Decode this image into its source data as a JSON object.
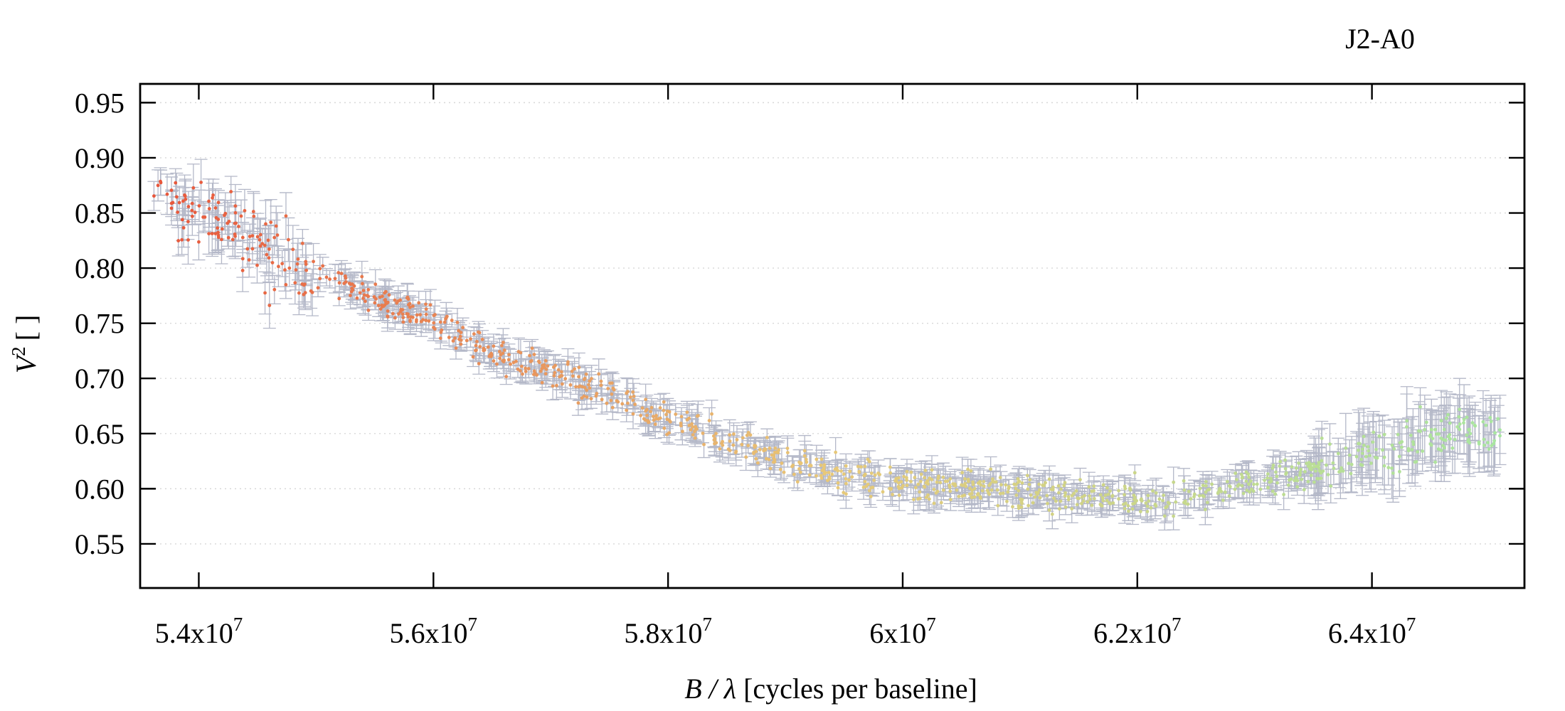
{
  "chart_data": {
    "type": "scatter",
    "title": "J2-A0",
    "xlabel": {
      "italic": "B / λ",
      "text": "[cycles per baseline]"
    },
    "ylabel": {
      "symbol": "V",
      "sup": "2",
      "units": "[ ]"
    },
    "xlim": [
      53500000,
      65300000
    ],
    "ylim": [
      0.51,
      0.967
    ],
    "x_ticks": [
      {
        "value": 54000000,
        "mantissa": "5.4x10",
        "exp": "7"
      },
      {
        "value": 56000000,
        "mantissa": "5.6x10",
        "exp": "7"
      },
      {
        "value": 58000000,
        "mantissa": "5.8x10",
        "exp": "7"
      },
      {
        "value": 60000000,
        "mantissa": "6x10",
        "exp": "7"
      },
      {
        "value": 62000000,
        "mantissa": "6.2x10",
        "exp": "7"
      },
      {
        "value": 64000000,
        "mantissa": "6.4x10",
        "exp": "7"
      }
    ],
    "y_ticks": [
      {
        "value": 0.55,
        "label": "0.55"
      },
      {
        "value": 0.6,
        "label": "0.60"
      },
      {
        "value": 0.65,
        "label": "0.65"
      },
      {
        "value": 0.7,
        "label": "0.70"
      },
      {
        "value": 0.75,
        "label": "0.75"
      },
      {
        "value": 0.8,
        "label": "0.80"
      },
      {
        "value": 0.85,
        "label": "0.85"
      },
      {
        "value": 0.9,
        "label": "0.90"
      },
      {
        "value": 0.95,
        "label": "0.95"
      }
    ],
    "grid": "horizontal-dotted",
    "legend": "none",
    "colors": {
      "start": "#e8553a",
      "mid": "#e8c878",
      "end": "#a8e6a0",
      "errorbar": "#b4b8c8"
    },
    "trend_points": [
      {
        "x": 53600000,
        "y": 0.86
      },
      {
        "x": 54000000,
        "y": 0.85
      },
      {
        "x": 54500000,
        "y": 0.82
      },
      {
        "x": 55000000,
        "y": 0.795
      },
      {
        "x": 55500000,
        "y": 0.775
      },
      {
        "x": 56000000,
        "y": 0.75
      },
      {
        "x": 56500000,
        "y": 0.725
      },
      {
        "x": 57000000,
        "y": 0.705
      },
      {
        "x": 57500000,
        "y": 0.685
      },
      {
        "x": 58000000,
        "y": 0.665
      },
      {
        "x": 58500000,
        "y": 0.645
      },
      {
        "x": 59000000,
        "y": 0.625
      },
      {
        "x": 59500000,
        "y": 0.612
      },
      {
        "x": 60000000,
        "y": 0.605
      },
      {
        "x": 60500000,
        "y": 0.6
      },
      {
        "x": 61000000,
        "y": 0.597
      },
      {
        "x": 61500000,
        "y": 0.593
      },
      {
        "x": 62000000,
        "y": 0.59
      },
      {
        "x": 62500000,
        "y": 0.595
      },
      {
        "x": 63000000,
        "y": 0.605
      },
      {
        "x": 63500000,
        "y": 0.618
      },
      {
        "x": 64000000,
        "y": 0.632
      },
      {
        "x": 64500000,
        "y": 0.645
      },
      {
        "x": 65000000,
        "y": 0.65
      }
    ],
    "sampling": {
      "x_start": 53600000,
      "x_end": 65100000,
      "n_points": 1100,
      "seed": 7
    }
  }
}
